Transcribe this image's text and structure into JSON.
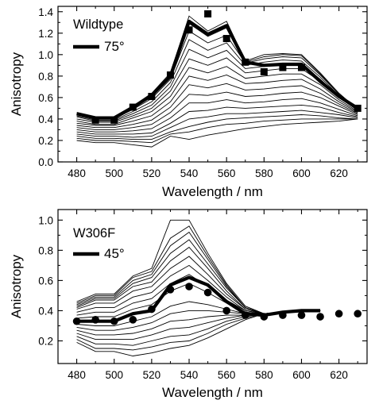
{
  "colors": {
    "line": "#000000",
    "background": "#ffffff"
  },
  "chart_data": [
    {
      "type": "line",
      "panel_label": "Wildtype",
      "xlabel": "Wavelength / nm",
      "ylabel": "Anisotropy",
      "xlim": [
        470,
        635
      ],
      "ylim": [
        0.0,
        1.45
      ],
      "xticks": [
        480,
        500,
        520,
        540,
        560,
        580,
        600,
        620
      ],
      "yticks": [
        0.0,
        0.2,
        0.4,
        0.6,
        0.8,
        1.0,
        1.2,
        1.4
      ],
      "ytick_labels": [
        "0.0",
        "0.2",
        "0.4",
        "0.6",
        "0.8",
        "1.0",
        "1.2",
        "1.4"
      ],
      "x": [
        480,
        490,
        500,
        510,
        520,
        530,
        540,
        550,
        560,
        570,
        580,
        590,
        600,
        610,
        620,
        630
      ],
      "thin_curves": [
        [
          0.2,
          0.18,
          0.18,
          0.16,
          0.14,
          0.24,
          0.21,
          0.25,
          0.28,
          0.31,
          0.33,
          0.35,
          0.36,
          0.37,
          0.38,
          0.4
        ],
        [
          0.22,
          0.2,
          0.2,
          0.19,
          0.18,
          0.26,
          0.28,
          0.32,
          0.35,
          0.36,
          0.38,
          0.39,
          0.4,
          0.4,
          0.4,
          0.4
        ],
        [
          0.24,
          0.22,
          0.22,
          0.21,
          0.21,
          0.28,
          0.33,
          0.37,
          0.4,
          0.41,
          0.42,
          0.43,
          0.44,
          0.43,
          0.41,
          0.4
        ],
        [
          0.26,
          0.24,
          0.24,
          0.23,
          0.24,
          0.32,
          0.4,
          0.42,
          0.45,
          0.45,
          0.46,
          0.47,
          0.48,
          0.46,
          0.44,
          0.41
        ],
        [
          0.28,
          0.26,
          0.26,
          0.26,
          0.27,
          0.36,
          0.47,
          0.48,
          0.51,
          0.5,
          0.51,
          0.52,
          0.53,
          0.51,
          0.46,
          0.42
        ],
        [
          0.3,
          0.28,
          0.28,
          0.29,
          0.31,
          0.41,
          0.55,
          0.55,
          0.58,
          0.55,
          0.56,
          0.58,
          0.59,
          0.55,
          0.49,
          0.43
        ],
        [
          0.32,
          0.3,
          0.3,
          0.32,
          0.35,
          0.46,
          0.63,
          0.62,
          0.65,
          0.61,
          0.62,
          0.64,
          0.65,
          0.6,
          0.52,
          0.44
        ],
        [
          0.34,
          0.32,
          0.32,
          0.35,
          0.39,
          0.51,
          0.72,
          0.69,
          0.73,
          0.67,
          0.68,
          0.7,
          0.71,
          0.64,
          0.54,
          0.45
        ],
        [
          0.36,
          0.34,
          0.34,
          0.38,
          0.43,
          0.56,
          0.8,
          0.76,
          0.81,
          0.73,
          0.74,
          0.76,
          0.77,
          0.68,
          0.56,
          0.46
        ],
        [
          0.38,
          0.35,
          0.35,
          0.41,
          0.47,
          0.61,
          0.88,
          0.83,
          0.89,
          0.78,
          0.8,
          0.82,
          0.82,
          0.72,
          0.58,
          0.47
        ],
        [
          0.4,
          0.37,
          0.37,
          0.43,
          0.5,
          0.66,
          0.96,
          0.9,
          0.97,
          0.83,
          0.85,
          0.87,
          0.87,
          0.75,
          0.6,
          0.48
        ],
        [
          0.42,
          0.38,
          0.38,
          0.45,
          0.53,
          0.7,
          1.05,
          0.97,
          1.04,
          0.87,
          0.89,
          0.91,
          0.91,
          0.77,
          0.61,
          0.49
        ],
        [
          0.43,
          0.39,
          0.39,
          0.47,
          0.56,
          0.74,
          1.14,
          1.04,
          1.11,
          0.9,
          0.93,
          0.95,
          0.94,
          0.79,
          0.62,
          0.49
        ],
        [
          0.44,
          0.4,
          0.4,
          0.49,
          0.59,
          0.77,
          1.22,
          1.11,
          1.18,
          0.92,
          0.96,
          0.98,
          0.97,
          0.81,
          0.63,
          0.49
        ],
        [
          0.45,
          0.41,
          0.41,
          0.51,
          0.62,
          0.8,
          1.29,
          1.17,
          1.25,
          0.93,
          0.98,
          1.0,
          0.99,
          0.82,
          0.64,
          0.49
        ],
        [
          0.46,
          0.42,
          0.42,
          0.52,
          0.64,
          0.83,
          1.36,
          1.22,
          1.31,
          0.94,
          1.0,
          1.01,
          1.0,
          0.83,
          0.64,
          0.49
        ]
      ],
      "series": [
        {
          "name": "75°",
          "style": "thick-line",
          "values": [
            0.45,
            0.41,
            0.41,
            0.51,
            0.62,
            0.8,
            1.31,
            1.19,
            1.27,
            0.93,
            0.9,
            0.91,
            0.91,
            0.75,
            0.61,
            0.5
          ]
        },
        {
          "style": "square-markers",
          "x": [
            490,
            500,
            510,
            520,
            530,
            540,
            550,
            560,
            570,
            580,
            590,
            600,
            630
          ],
          "values": [
            0.39,
            0.39,
            0.51,
            0.61,
            0.81,
            1.23,
            1.38,
            1.15,
            0.93,
            0.84,
            0.88,
            0.88,
            0.5
          ]
        }
      ],
      "legend": {
        "position": "top-left",
        "label": "75°"
      }
    },
    {
      "type": "line",
      "panel_label": "W306F",
      "xlabel": "Wavelength / nm",
      "ylabel": "Anisotropy",
      "xlim": [
        470,
        635
      ],
      "ylim": [
        0.05,
        1.07
      ],
      "xticks": [
        480,
        500,
        520,
        540,
        560,
        580,
        600,
        620
      ],
      "yticks": [
        0.2,
        0.4,
        0.6,
        0.8,
        1.0
      ],
      "ytick_labels": [
        "0.2",
        "0.4",
        "0.6",
        "0.8",
        "1.0"
      ],
      "x": [
        480,
        490,
        500,
        510,
        520,
        530,
        540,
        550,
        560,
        570,
        580,
        590,
        600,
        610
      ],
      "thin_curves": [
        [
          0.19,
          0.13,
          0.13,
          0.1,
          0.12,
          0.15,
          0.17,
          0.22,
          0.28,
          0.34,
          0.38,
          0.39,
          0.4,
          0.4
        ],
        [
          0.21,
          0.15,
          0.15,
          0.14,
          0.16,
          0.19,
          0.2,
          0.25,
          0.31,
          0.35,
          0.38,
          0.39,
          0.4,
          0.4
        ],
        [
          0.23,
          0.18,
          0.18,
          0.17,
          0.2,
          0.23,
          0.24,
          0.28,
          0.33,
          0.36,
          0.38,
          0.39,
          0.4,
          0.4
        ],
        [
          0.25,
          0.21,
          0.21,
          0.21,
          0.24,
          0.28,
          0.29,
          0.32,
          0.35,
          0.37,
          0.38,
          0.39,
          0.4,
          0.4
        ],
        [
          0.27,
          0.24,
          0.24,
          0.25,
          0.28,
          0.33,
          0.34,
          0.36,
          0.37,
          0.37,
          0.38,
          0.39,
          0.4,
          0.4
        ],
        [
          0.29,
          0.27,
          0.27,
          0.29,
          0.32,
          0.38,
          0.4,
          0.4,
          0.39,
          0.38,
          0.38,
          0.39,
          0.4,
          0.4
        ],
        [
          0.31,
          0.3,
          0.3,
          0.33,
          0.36,
          0.43,
          0.46,
          0.44,
          0.41,
          0.38,
          0.38,
          0.39,
          0.4,
          0.4
        ],
        [
          0.35,
          0.36,
          0.36,
          0.41,
          0.44,
          0.53,
          0.58,
          0.52,
          0.45,
          0.39,
          0.38,
          0.39,
          0.4,
          0.4
        ],
        [
          0.37,
          0.39,
          0.39,
          0.45,
          0.48,
          0.58,
          0.64,
          0.56,
          0.47,
          0.4,
          0.38,
          0.39,
          0.4,
          0.4
        ],
        [
          0.39,
          0.42,
          0.42,
          0.49,
          0.52,
          0.63,
          0.7,
          0.6,
          0.49,
          0.4,
          0.38,
          0.39,
          0.4,
          0.4
        ],
        [
          0.41,
          0.45,
          0.45,
          0.53,
          0.56,
          0.68,
          0.76,
          0.64,
          0.51,
          0.41,
          0.38,
          0.39,
          0.4,
          0.4
        ],
        [
          0.42,
          0.47,
          0.47,
          0.56,
          0.59,
          0.73,
          0.82,
          0.68,
          0.53,
          0.41,
          0.38,
          0.39,
          0.4,
          0.4
        ],
        [
          0.43,
          0.48,
          0.48,
          0.58,
          0.62,
          0.78,
          0.87,
          0.71,
          0.55,
          0.42,
          0.38,
          0.39,
          0.4,
          0.4
        ],
        [
          0.44,
          0.49,
          0.49,
          0.6,
          0.64,
          0.83,
          0.92,
          0.74,
          0.56,
          0.42,
          0.38,
          0.39,
          0.4,
          0.4
        ],
        [
          0.45,
          0.5,
          0.5,
          0.62,
          0.66,
          0.88,
          0.96,
          0.76,
          0.57,
          0.42,
          0.38,
          0.39,
          0.4,
          0.4
        ],
        [
          0.46,
          0.51,
          0.51,
          0.63,
          0.68,
          1.0,
          1.0,
          0.78,
          0.58,
          0.43,
          0.38,
          0.39,
          0.4,
          0.4
        ]
      ],
      "series": [
        {
          "name": "45°",
          "style": "thick-line",
          "values": [
            0.33,
            0.33,
            0.33,
            0.38,
            0.4,
            0.57,
            0.62,
            0.57,
            0.46,
            0.38,
            0.37,
            0.39,
            0.4,
            0.4
          ]
        },
        {
          "style": "circle-markers",
          "x": [
            480,
            490,
            500,
            510,
            520,
            530,
            540,
            550,
            560,
            570,
            580,
            590,
            600,
            610,
            620,
            630
          ],
          "values": [
            0.33,
            0.34,
            0.33,
            0.34,
            0.41,
            0.54,
            0.56,
            0.52,
            0.4,
            0.37,
            0.36,
            0.37,
            0.37,
            0.36,
            0.38,
            0.38
          ]
        }
      ],
      "legend": {
        "position": "top-left",
        "label": "45°"
      }
    }
  ]
}
